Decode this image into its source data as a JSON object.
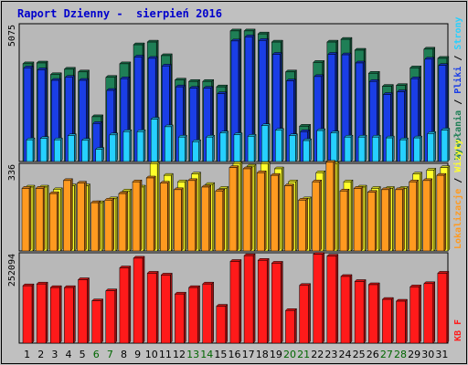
{
  "title": "Raport Dzienny -  sierpień 2016",
  "chart_data": [
    {
      "type": "bar",
      "panel": "top",
      "y_tick_label": "5075",
      "ylim": [
        0,
        5075
      ],
      "categories": [
        "1",
        "2",
        "3",
        "4",
        "5",
        "6",
        "7",
        "8",
        "9",
        "10",
        "11",
        "12",
        "13",
        "14",
        "15",
        "16",
        "17",
        "18",
        "19",
        "20",
        "21",
        "22",
        "23",
        "24",
        "25",
        "26",
        "27",
        "28",
        "29",
        "30",
        "31"
      ],
      "category_colors": [
        "#000000",
        "#000000",
        "#000000",
        "#000000",
        "#000000",
        "#006600",
        "#006600",
        "#000000",
        "#000000",
        "#000000",
        "#000000",
        "#000000",
        "#006600",
        "#006600",
        "#000000",
        "#000000",
        "#000000",
        "#000000",
        "#000000",
        "#006600",
        "#006600",
        "#000000",
        "#000000",
        "#000000",
        "#000000",
        "#000000",
        "#006600",
        "#006600",
        "#000000",
        "#000000",
        "#000000"
      ],
      "series": [
        {
          "name": "Wywołania",
          "color": "#1f7f56",
          "values": [
            3600,
            3630,
            3200,
            3400,
            3300,
            1650,
            3100,
            3600,
            4300,
            4400,
            3900,
            3000,
            2950,
            2950,
            2750,
            4810,
            4810,
            4700,
            4400,
            3300,
            1300,
            3650,
            4400,
            4500,
            4100,
            3250,
            2770,
            2800,
            3450,
            4140,
            3800
          ]
        },
        {
          "name": "Pliki",
          "color": "#1a3ee6",
          "values": [
            3450,
            3380,
            2990,
            3100,
            2990,
            1400,
            2620,
            3050,
            3850,
            3800,
            3520,
            2750,
            2700,
            2700,
            2500,
            4440,
            4590,
            4460,
            3950,
            2970,
            1100,
            3130,
            3950,
            3930,
            3630,
            2950,
            2470,
            2570,
            3050,
            3770,
            3540
          ]
        },
        {
          "name": "Strony",
          "color": "#26d0ff",
          "values": [
            800,
            850,
            800,
            950,
            780,
            450,
            980,
            1100,
            1100,
            1560,
            1280,
            900,
            730,
            900,
            1050,
            990,
            930,
            1320,
            1150,
            950,
            770,
            1140,
            1050,
            900,
            900,
            900,
            870,
            800,
            870,
            1030,
            1160
          ]
        }
      ]
    },
    {
      "type": "bar",
      "panel": "middle",
      "y_tick_label": "336",
      "ylim": [
        0,
        336
      ],
      "series": [
        {
          "name": "Wizyty",
          "color": "#ffff2a",
          "values": [
            245,
            245,
            235,
            250,
            250,
            185,
            200,
            230,
            245,
            335,
            290,
            265,
            295,
            255,
            240,
            335,
            325,
            335,
            315,
            265,
            200,
            300,
            335,
            265,
            245,
            240,
            240,
            240,
            295,
            310,
            320
          ]
        },
        {
          "name": "Lokalizacje",
          "color": "#ff9a20",
          "values": [
            240,
            240,
            220,
            270,
            260,
            185,
            195,
            220,
            265,
            280,
            260,
            235,
            270,
            245,
            230,
            320,
            315,
            300,
            290,
            250,
            195,
            265,
            340,
            230,
            240,
            225,
            235,
            235,
            265,
            270,
            290
          ]
        }
      ]
    },
    {
      "type": "bar",
      "panel": "bottom",
      "y_tick_label": "252094",
      "ylim": [
        0,
        252094
      ],
      "series": [
        {
          "name": "KB F",
          "color": "#ff1a1a",
          "values": [
            160000,
            165000,
            155000,
            155000,
            177000,
            118000,
            146000,
            210000,
            237000,
            195000,
            190000,
            137000,
            155000,
            165000,
            103000,
            228000,
            244000,
            231000,
            223000,
            91000,
            161000,
            248000,
            243000,
            186000,
            172000,
            163000,
            122000,
            117000,
            157000,
            166000,
            195000
          ]
        }
      ]
    }
  ],
  "right_labels": {
    "top": [
      {
        "text": "Wywołania",
        "color": "#1f7f56"
      },
      {
        "text": " / ",
        "color": "#000000"
      },
      {
        "text": "Pliki",
        "color": "#1a3ee6"
      },
      {
        "text": " / ",
        "color": "#000000"
      },
      {
        "text": "Strony",
        "color": "#26d0ff"
      }
    ],
    "middle": [
      {
        "text": "Lokalizacje",
        "color": "#ff9a20"
      },
      {
        "text": " / ",
        "color": "#000000"
      },
      {
        "text": "Wizyty",
        "color": "#ffff2a"
      }
    ],
    "bottom": [
      {
        "text": "KB F",
        "color": "#ff1a1a"
      }
    ]
  }
}
